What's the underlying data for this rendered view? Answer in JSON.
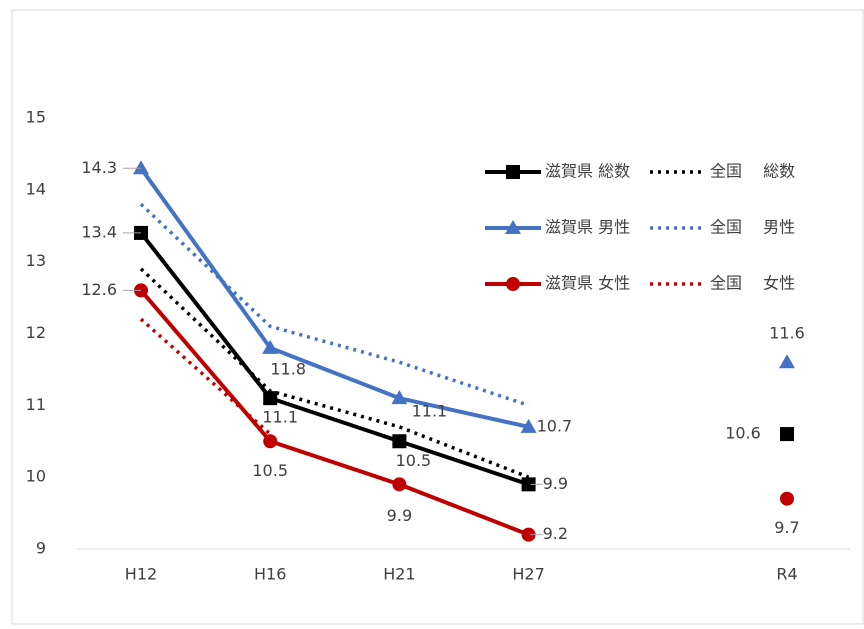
{
  "chart_data": {
    "type": "line",
    "categories": [
      "H12",
      "H16",
      "H21",
      "H27",
      null,
      "R4"
    ],
    "ylim": [
      9,
      15
    ],
    "yticks": [
      9,
      10,
      11,
      12,
      13,
      14,
      15
    ],
    "grid": false,
    "series": [
      {
        "name": "滋賀県 総数",
        "color": "#000000",
        "dash": "solid",
        "marker": "square",
        "data_labels": true,
        "values": [
          13.4,
          11.1,
          10.5,
          9.9,
          null,
          10.6
        ]
      },
      {
        "name": "全国　 総数",
        "color": "#000000",
        "dash": "dotted",
        "marker": "none",
        "data_labels": false,
        "values": [
          12.9,
          11.2,
          10.7,
          10.0,
          null,
          null
        ]
      },
      {
        "name": "滋賀県 男性",
        "color": "#4472c4",
        "dash": "solid",
        "marker": "triangle",
        "data_labels": true,
        "values": [
          14.3,
          11.8,
          11.1,
          10.7,
          null,
          11.6
        ]
      },
      {
        "name": "全国　 男性",
        "color": "#4472c4",
        "dash": "dotted",
        "marker": "none",
        "data_labels": false,
        "values": [
          13.8,
          12.1,
          11.6,
          11.0,
          null,
          null
        ]
      },
      {
        "name": "滋賀県 女性",
        "color": "#c00000",
        "dash": "solid",
        "marker": "circle",
        "data_labels": true,
        "values": [
          12.6,
          10.5,
          9.9,
          9.2,
          null,
          9.7
        ]
      },
      {
        "name": "全国　 女性",
        "color": "#c00000",
        "dash": "dotted",
        "marker": "none",
        "data_labels": false,
        "values": [
          12.2,
          10.6,
          null,
          null,
          null,
          null
        ]
      }
    ],
    "legend": "upper right"
  }
}
